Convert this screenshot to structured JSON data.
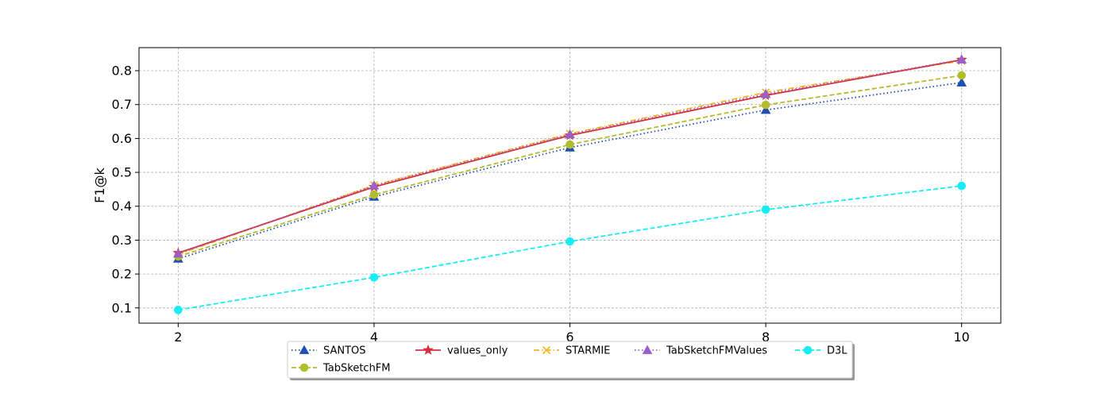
{
  "chart_data": {
    "type": "line",
    "xlabel": "",
    "ylabel": "F1@k",
    "x": [
      2,
      4,
      6,
      8,
      10
    ],
    "xticks": [
      "2",
      "4",
      "6",
      "8",
      "10"
    ],
    "yticks": [
      "0.1",
      "0.2",
      "0.3",
      "0.4",
      "0.5",
      "0.6",
      "0.7",
      "0.8"
    ],
    "xlim": [
      1.6,
      10.4
    ],
    "ylim": [
      0.055,
      0.868
    ],
    "grid": true,
    "legend_position": "bottom-center",
    "series": [
      {
        "name": "SANTOS",
        "values": [
          0.245,
          0.428,
          0.573,
          0.684,
          0.765
        ],
        "color": "#1f4eb4",
        "dash": "dotted",
        "marker": "triangle"
      },
      {
        "name": "values_only",
        "values": [
          0.262,
          0.457,
          0.609,
          0.727,
          0.832
        ],
        "color": "#d62f3f",
        "dash": "solid",
        "marker": "star"
      },
      {
        "name": "STARMIE",
        "values": [
          0.258,
          0.462,
          0.614,
          0.736,
          0.829
        ],
        "color": "#f5b820",
        "dash": "dashdot",
        "marker": "x"
      },
      {
        "name": "TabSketchFMValues",
        "values": [
          0.26,
          0.461,
          0.612,
          0.731,
          0.833
        ],
        "color": "#9a60c9",
        "dash": "dotted",
        "marker": "triangle"
      },
      {
        "name": "D3L",
        "values": [
          0.094,
          0.19,
          0.296,
          0.39,
          0.46
        ],
        "color": "#16eef4",
        "dash": "dashed",
        "marker": "circle"
      },
      {
        "name": "TabSketchFM",
        "values": [
          0.252,
          0.434,
          0.582,
          0.699,
          0.786
        ],
        "color": "#b1bd2a",
        "dash": "dashed",
        "marker": "circle"
      }
    ]
  }
}
